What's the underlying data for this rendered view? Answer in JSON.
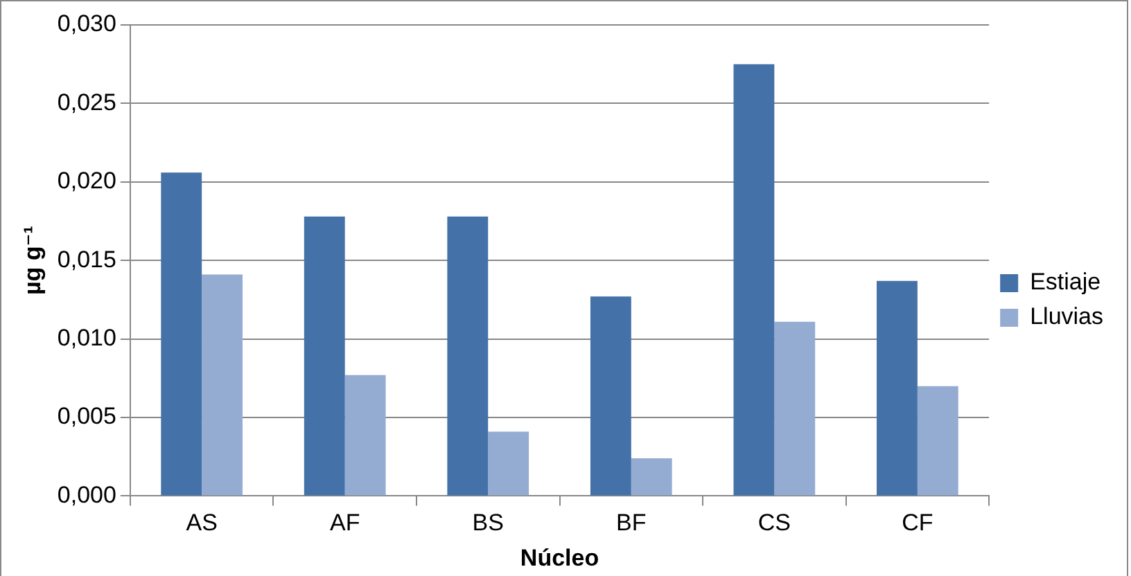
{
  "chart_data": {
    "type": "bar",
    "xlabel": "Núcleo",
    "ylabel": "µg g⁻¹",
    "categories": [
      "AS",
      "AF",
      "BS",
      "BF",
      "CS",
      "CF"
    ],
    "series": [
      {
        "name": "Estiaje",
        "color": "#4472a8",
        "values": [
          0.0206,
          0.0178,
          0.0178,
          0.0127,
          0.0275,
          0.0137
        ]
      },
      {
        "name": "Lluvias",
        "color": "#95acd2",
        "values": [
          0.0141,
          0.0077,
          0.0041,
          0.0024,
          0.0111,
          0.007
        ]
      }
    ],
    "ylim": [
      0,
      0.03
    ],
    "yticks": [
      {
        "value": 0,
        "label": "0,000"
      },
      {
        "value": 0.005,
        "label": "0,005"
      },
      {
        "value": 0.01,
        "label": "0,010"
      },
      {
        "value": 0.015,
        "label": "0,015"
      },
      {
        "value": 0.02,
        "label": "0,020"
      },
      {
        "value": 0.025,
        "label": "0,025"
      },
      {
        "value": 0.03,
        "label": "0,030"
      }
    ],
    "grid": "y",
    "legend": "right"
  }
}
